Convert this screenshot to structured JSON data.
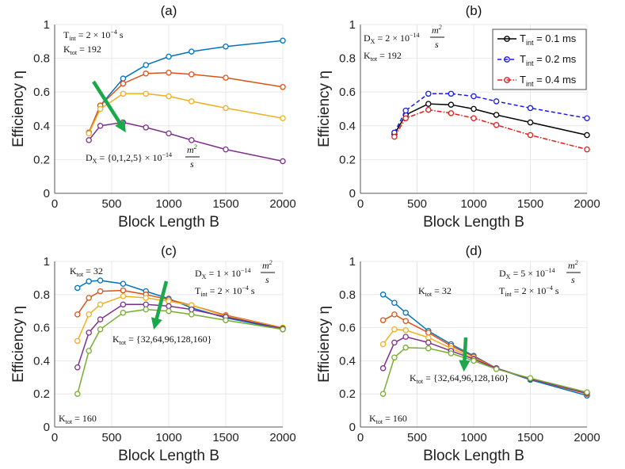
{
  "chart_data": [
    {
      "type": "line",
      "panel_label": "(a)",
      "xlabel": "Block Length B",
      "ylabel": "Efficiency η",
      "xlim": [
        0,
        2000
      ],
      "ylim": [
        0,
        1
      ],
      "xticks": [
        "0",
        "500",
        "1000",
        "1500",
        "2000"
      ],
      "yticks": [
        "0",
        "0.2",
        "0.4",
        "0.6",
        "0.8",
        "1"
      ],
      "grid": true,
      "annotations": [
        "T_int = 2 × 10^-4 s",
        "K_tot = 192",
        "D_X = {0,1,2,5} × 10^-14 m^2/s"
      ],
      "arrow": "down-right, increasing D_X",
      "x": [
        300,
        400,
        600,
        800,
        1000,
        1200,
        1500,
        2000
      ],
      "series": [
        {
          "name": "D_X = 0",
          "color": "#0072BD",
          "values": [
            0.36,
            0.52,
            0.68,
            0.76,
            0.81,
            0.84,
            0.87,
            0.905
          ]
        },
        {
          "name": "D_X = 1e-14",
          "color": "#D95319",
          "values": [
            0.36,
            0.52,
            0.65,
            0.71,
            0.715,
            0.705,
            0.685,
            0.63
          ]
        },
        {
          "name": "D_X = 2e-14",
          "color": "#EDB120",
          "values": [
            0.355,
            0.5,
            0.59,
            0.59,
            0.575,
            0.545,
            0.505,
            0.445
          ]
        },
        {
          "name": "D_X = 5e-14",
          "color": "#7E2F8E",
          "values": [
            0.315,
            0.4,
            0.42,
            0.39,
            0.355,
            0.315,
            0.26,
            0.19
          ]
        }
      ]
    },
    {
      "type": "line",
      "panel_label": "(b)",
      "xlabel": "Block Length B",
      "ylabel": "Efficiency η",
      "xlim": [
        0,
        2000
      ],
      "ylim": [
        0,
        1
      ],
      "xticks": [
        "0",
        "500",
        "1000",
        "1500",
        "2000"
      ],
      "yticks": [
        "0",
        "0.2",
        "0.4",
        "0.6",
        "0.8",
        "1"
      ],
      "grid": true,
      "annotations": [
        "D_X = 2 × 10^-14 m^2/s",
        "K_tot = 192"
      ],
      "legend_position": "top-right",
      "x": [
        300,
        400,
        600,
        800,
        1000,
        1200,
        1500,
        2000
      ],
      "series": [
        {
          "name": "T_int = 0.1 ms",
          "color": "#000000",
          "style": "solid",
          "values": [
            0.35,
            0.465,
            0.53,
            0.525,
            0.5,
            0.465,
            0.42,
            0.345
          ]
        },
        {
          "name": "T_int = 0.2 ms",
          "color": "#1A1AE6",
          "style": "dashed",
          "values": [
            0.36,
            0.49,
            0.59,
            0.59,
            0.575,
            0.545,
            0.505,
            0.445
          ]
        },
        {
          "name": "T_int = 0.4 ms",
          "color": "#E61A1A",
          "style": "dashdot",
          "values": [
            0.335,
            0.445,
            0.495,
            0.475,
            0.445,
            0.405,
            0.345,
            0.26
          ]
        }
      ]
    },
    {
      "type": "line",
      "panel_label": "(c)",
      "xlabel": "Block Length B",
      "ylabel": "Efficiency η",
      "xlim": [
        0,
        2000
      ],
      "ylim": [
        0,
        1
      ],
      "xticks": [
        "0",
        "500",
        "1000",
        "1500",
        "2000"
      ],
      "yticks": [
        "0",
        "0.2",
        "0.4",
        "0.6",
        "0.8",
        "1"
      ],
      "grid": true,
      "annotations": [
        "D_X = 1 × 10^-14 m^2/s",
        "T_int = 2 × 10^-4 s",
        "K_tot = 32",
        "K_tot = 160",
        "K_tot = {32,64,96,128,160}"
      ],
      "arrow": "down, increasing K_tot",
      "x": [
        200,
        300,
        400,
        600,
        800,
        1000,
        1200,
        1500,
        2000
      ],
      "series": [
        {
          "name": "K_tot = 32",
          "color": "#0072BD",
          "values": [
            0.84,
            0.88,
            0.885,
            0.865,
            0.82,
            0.775,
            0.72,
            0.66,
            0.59
          ]
        },
        {
          "name": "K_tot = 64",
          "color": "#D95319",
          "values": [
            0.68,
            0.78,
            0.82,
            0.825,
            0.8,
            0.77,
            0.735,
            0.675,
            0.6
          ]
        },
        {
          "name": "K_tot = 96",
          "color": "#EDB120",
          "values": [
            0.52,
            0.68,
            0.74,
            0.79,
            0.78,
            0.76,
            0.735,
            0.67,
            0.6
          ]
        },
        {
          "name": "K_tot = 128",
          "color": "#7E2F8E",
          "values": [
            0.36,
            0.57,
            0.65,
            0.74,
            0.74,
            0.73,
            0.71,
            0.665,
            0.595
          ]
        },
        {
          "name": "K_tot = 160",
          "color": "#77AC30",
          "values": [
            0.2,
            0.46,
            0.59,
            0.69,
            0.71,
            0.7,
            0.68,
            0.645,
            0.59
          ]
        }
      ]
    },
    {
      "type": "line",
      "panel_label": "(d)",
      "xlabel": "Block Length B",
      "ylabel": "Efficiency η",
      "xlim": [
        0,
        2000
      ],
      "ylim": [
        0,
        1
      ],
      "xticks": [
        "0",
        "500",
        "1000",
        "1500",
        "2000"
      ],
      "yticks": [
        "0",
        "0.2",
        "0.4",
        "0.6",
        "0.8",
        "1"
      ],
      "grid": true,
      "annotations": [
        "D_X = 5 × 10^-14 m^2/s",
        "T_int = 2 × 10^-4 s",
        "K_tot = 32",
        "K_tot = 160",
        "K_tot = {32,64,96,128,160}"
      ],
      "arrow": "down, increasing K_tot",
      "x": [
        200,
        300,
        400,
        600,
        800,
        1000,
        1200,
        1500,
        2000
      ],
      "series": [
        {
          "name": "K_tot = 32",
          "color": "#0072BD",
          "values": [
            0.8,
            0.75,
            0.69,
            0.58,
            0.5,
            0.43,
            0.355,
            0.285,
            0.19
          ]
        },
        {
          "name": "K_tot = 64",
          "color": "#D95319",
          "values": [
            0.645,
            0.68,
            0.64,
            0.57,
            0.49,
            0.425,
            0.355,
            0.29,
            0.2
          ]
        },
        {
          "name": "K_tot = 96",
          "color": "#EDB120",
          "values": [
            0.5,
            0.59,
            0.585,
            0.54,
            0.475,
            0.415,
            0.355,
            0.29,
            0.205
          ]
        },
        {
          "name": "K_tot = 128",
          "color": "#7E2F8E",
          "values": [
            0.355,
            0.51,
            0.545,
            0.51,
            0.46,
            0.41,
            0.355,
            0.29,
            0.205
          ]
        },
        {
          "name": "K_tot = 160",
          "color": "#77AC30",
          "values": [
            0.2,
            0.42,
            0.48,
            0.475,
            0.445,
            0.4,
            0.35,
            0.295,
            0.21
          ]
        }
      ]
    }
  ],
  "texts": {
    "a": {
      "tint_main": "T",
      "tint_sub": "int",
      "tint_rest": " = 2 × 10",
      "tint_exp": "−4",
      "tint_unit": " s",
      "ktot_main": "K",
      "ktot_sub": "tot",
      "ktot_rest": " = 192",
      "dx_main": "D",
      "dx_sub": "X",
      "dx_rest": " = {0,1,2,5} × 10",
      "dx_exp": "−14",
      "frac_num": "m",
      "frac_num_exp": "2",
      "frac_den": "s"
    },
    "b": {
      "dx_main": "D",
      "dx_sub": "X",
      "dx_rest": " = 2 × 10",
      "dx_exp": "−14",
      "frac_num": "m",
      "frac_num_exp": "2",
      "frac_den": "s",
      "ktot_main": "K",
      "ktot_sub": "tot",
      "ktot_rest": " = 192",
      "leg1_main": "T",
      "leg1_sub": "int",
      "leg1_rest": " = 0.1 ms",
      "leg2_main": "T",
      "leg2_sub": "int",
      "leg2_rest": " = 0.2 ms",
      "leg3_main": "T",
      "leg3_sub": "int",
      "leg3_rest": " = 0.4 ms"
    },
    "c": {
      "dx_main": "D",
      "dx_sub": "X",
      "dx_rest": " = 1 × 10",
      "dx_exp": "−14",
      "frac_num": "m",
      "frac_num_exp": "2",
      "frac_den": "s",
      "tint_main": "T",
      "tint_sub": "int",
      "tint_rest": " = 2 × 10",
      "tint_exp": "−4",
      "tint_unit": " s",
      "k32_main": "K",
      "k32_sub": "tot",
      "k32_rest": " = 32",
      "k160_main": "K",
      "k160_sub": "tot",
      "k160_rest": " = 160",
      "kset_main": "K",
      "kset_sub": "tot",
      "kset_rest": " = {32,64,96,128,160}"
    },
    "d": {
      "dx_main": "D",
      "dx_sub": "X",
      "dx_rest": " = 5 × 10",
      "dx_exp": "−14",
      "frac_num": "m",
      "frac_num_exp": "2",
      "frac_den": "s",
      "tint_main": "T",
      "tint_sub": "int",
      "tint_rest": " = 2 × 10",
      "tint_exp": "−4",
      "tint_unit": " s",
      "k32_main": "K",
      "k32_sub": "tot",
      "k32_rest": " = 32",
      "k160_main": "K",
      "k160_sub": "tot",
      "k160_rest": " = 160",
      "kset_main": "K",
      "kset_sub": "tot",
      "kset_rest": " = {32,64,96,128,160}"
    }
  }
}
